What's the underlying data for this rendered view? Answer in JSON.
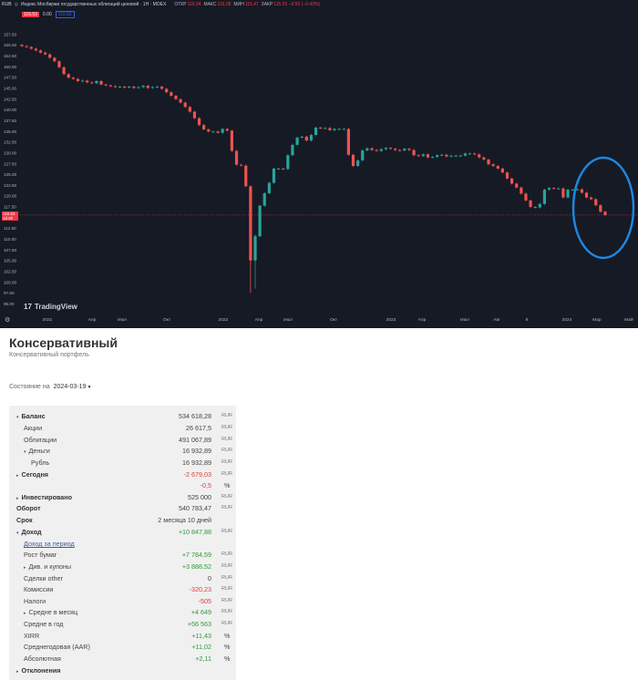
{
  "chart": {
    "header": {
      "currency": "RUB",
      "symbol": "Индекс Мосбиржи государственных облигаций ценовой · 1Н · MOEX",
      "open_label": "ОТКР",
      "open_value": "116.04",
      "high_label": "МАКС",
      "high_value": "116.08",
      "low_label": "МИН",
      "low_value": "115.47",
      "close_label": "ЗАКР",
      "close_value": "115.53 −0.50 (−0.43%)",
      "sell_price": "115.53",
      "spread": "0.00",
      "buy_price": "115.52"
    },
    "last_price_label": "115.53",
    "last_price_sub": "3d 8h",
    "logo_text": "TradingView",
    "colors": {
      "up": "#26a69a",
      "down": "#ef5350",
      "background": "#161a25",
      "highlight_circle": "#1e88e5"
    }
  },
  "chart_data": {
    "type": "candlestick",
    "title": "Индекс Мосбиржи государственных облигаций ценовой",
    "ylim": [
      95,
      158
    ],
    "y_ticks": [
      "157.50",
      "155.00",
      "152.50",
      "150.00",
      "147.50",
      "145.00",
      "142.50",
      "140.00",
      "137.50",
      "135.00",
      "132.50",
      "130.00",
      "127.50",
      "125.00",
      "122.50",
      "120.00",
      "117.50",
      "115.00",
      "112.50",
      "110.00",
      "107.50",
      "105.00",
      "102.50",
      "100.00",
      "97.50",
      "95.00"
    ],
    "x_ticks": [
      "2021",
      "Апр",
      "Июл",
      "Окт",
      "2022",
      "Апр",
      "Июл",
      "Окт",
      "2023",
      "Апр",
      "Июл",
      "Авг",
      "9",
      "2024",
      "Мар",
      "Май"
    ],
    "close_path": [
      154.7,
      154.5,
      154.1,
      153.7,
      153.2,
      152.8,
      152.0,
      151.2,
      149.8,
      148.2,
      147.4,
      147.1,
      146.6,
      146.7,
      146.3,
      146.1,
      146.6,
      145.8,
      145.6,
      145.4,
      145.2,
      145.3,
      145.1,
      145.3,
      145.0,
      145.2,
      145.5,
      145.0,
      145.2,
      145.3,
      144.8,
      144.0,
      143.2,
      142.4,
      141.6,
      140.6,
      139.5,
      138.0,
      136.4,
      135.4,
      134.9,
      134.9,
      134.6,
      135.5,
      135.1,
      130.4,
      127.2,
      127.0,
      122.2,
      105.0,
      110.6,
      117.7,
      120.6,
      123.0,
      126.3,
      126.3,
      126.2,
      129.4,
      131.8,
      133.5,
      133.7,
      132.8,
      134.1,
      135.8,
      135.7,
      135.7,
      135.2,
      135.5,
      135.5,
      135.5,
      129.5,
      126.9,
      128.2,
      130.5,
      131.0,
      130.6,
      130.4,
      130.8,
      131.1,
      130.9,
      130.6,
      130.5,
      130.9,
      130.6,
      129.4,
      129.2,
      129.6,
      128.9,
      129.0,
      129.4,
      129.5,
      129.1,
      129.3,
      129.3,
      129.3,
      129.8,
      129.8,
      129.6,
      128.9,
      128.4,
      127.3,
      126.9,
      126.3,
      125.4,
      124.0,
      122.8,
      121.9,
      120.5,
      118.9,
      117.4,
      117.3,
      118.1,
      121.4,
      121.8,
      121.7,
      121.7,
      119.6,
      121.4,
      121.4,
      121.5,
      120.7,
      119.6,
      119.2,
      117.8,
      116.3,
      115.5
    ],
    "last_close": 115.53
  },
  "portfolio": {
    "title": "Консервативный",
    "subtitle": "Консервативный портфель",
    "state_label": "Состояние на",
    "state_date": "2024-03-19",
    "rows": [
      {
        "label": "Баланс",
        "value": "534 618,28",
        "currency": "RUR",
        "style": "bold",
        "indent": 0,
        "toggle": "▾"
      },
      {
        "label": "Акции",
        "value": "26 617,5",
        "currency": "RUR",
        "style": "",
        "indent": 1
      },
      {
        "label": "Облигации",
        "value": "491 067,89",
        "currency": "RUR",
        "style": "",
        "indent": 1
      },
      {
        "label": "Деньги",
        "value": "16 932,89",
        "currency": "RUR",
        "style": "",
        "indent": 1,
        "toggle": "▾"
      },
      {
        "label": "Рубль",
        "value": "16 932,89",
        "currency": "RUR",
        "style": "",
        "indent": 2
      },
      {
        "label": "Сегодня",
        "value": "-2 679,03",
        "currency": "RUR",
        "style": "bold",
        "indent": 0,
        "toggle": "▸",
        "value_color": "red"
      },
      {
        "label": "",
        "value": "-0,5",
        "currency": "%",
        "style": "",
        "indent": 0,
        "value_color": "red"
      },
      {
        "label": "Инвестировано",
        "value": "525 000",
        "currency": "RUR",
        "style": "bold",
        "indent": 0,
        "toggle": "▸"
      },
      {
        "label": "Оборот",
        "value": "540 783,47",
        "currency": "RUR",
        "style": "bold",
        "indent": 0
      },
      {
        "label": "Срок",
        "value": "2 месяца 10 дней",
        "currency": "",
        "style": "bold",
        "indent": 0
      },
      {
        "label": "Доход",
        "value": "+10 847,88",
        "currency": "RUR",
        "style": "bold",
        "indent": 0,
        "toggle": "▾",
        "value_color": "green"
      },
      {
        "label": "Доход за период",
        "value": "",
        "currency": "",
        "style": "link",
        "indent": 1
      },
      {
        "label": "Рост бумаг",
        "value": "+7 784,59",
        "currency": "RUR",
        "style": "",
        "indent": 1,
        "value_color": "green"
      },
      {
        "label": "Див. и купоны",
        "value": "+3 888,52",
        "currency": "RUR",
        "style": "",
        "indent": 1,
        "toggle": "▸",
        "value_color": "green"
      },
      {
        "label": "Сделки other",
        "value": "0",
        "currency": "RUR",
        "style": "",
        "indent": 1
      },
      {
        "label": "Комиссии",
        "value": "-320,23",
        "currency": "RUR",
        "style": "",
        "indent": 1,
        "value_color": "red"
      },
      {
        "label": "Налоги",
        "value": "-505",
        "currency": "RUR",
        "style": "",
        "indent": 1,
        "value_color": "red"
      },
      {
        "label": "Средне в месяц",
        "value": "+4 649",
        "currency": "RUR",
        "style": "",
        "indent": 1,
        "toggle": "▸",
        "value_color": "green"
      },
      {
        "label": "Средне в год",
        "value": "+56 563",
        "currency": "RUR",
        "style": "",
        "indent": 1,
        "value_color": "green"
      },
      {
        "label": "XIRR",
        "value": "+11,43",
        "currency": "%",
        "style": "",
        "indent": 1,
        "value_color": "green"
      },
      {
        "label": "Среднегодовая (AAR)",
        "value": "+11,02",
        "currency": "%",
        "style": "",
        "indent": 1,
        "value_color": "green"
      },
      {
        "label": "Абсолютная",
        "value": "+2,11",
        "currency": "%",
        "style": "",
        "indent": 1,
        "value_color": "green"
      },
      {
        "label": "Отклонения",
        "value": "",
        "currency": "",
        "style": "bold",
        "indent": 0,
        "toggle": "▸"
      }
    ]
  }
}
